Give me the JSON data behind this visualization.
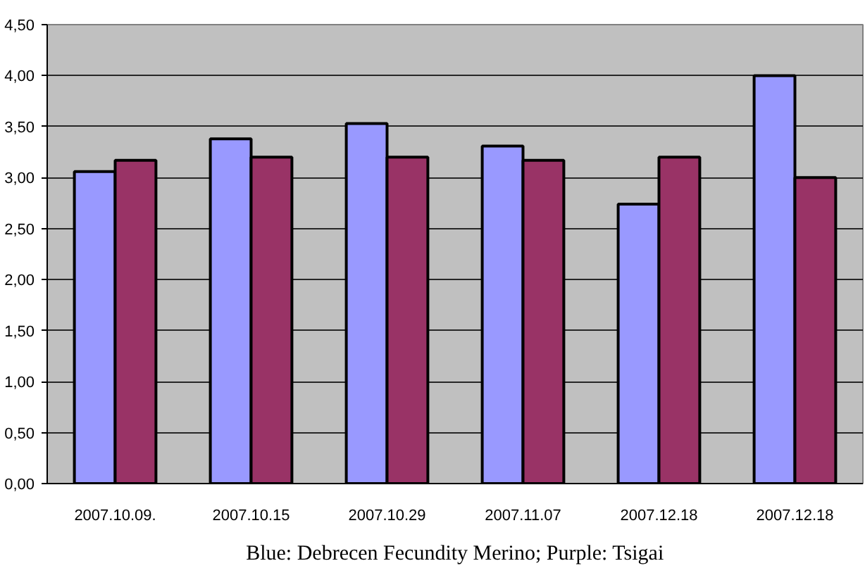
{
  "chart_data": {
    "type": "bar",
    "categories": [
      "2007.10.09.",
      "2007.10.15",
      "2007.10.29",
      "2007.11.07",
      "2007.12.18",
      "2007.12.18"
    ],
    "series": [
      {
        "color": "#9999ff",
        "values": [
          3.06,
          3.38,
          3.53,
          3.31,
          2.74,
          4.0
        ]
      },
      {
        "color": "#993366",
        "values": [
          3.17,
          3.2,
          3.2,
          3.17,
          3.2,
          3.0
        ]
      }
    ],
    "ylim": [
      0,
      4.5
    ],
    "yticks": [
      {
        "value": 0,
        "label": "0,00"
      },
      {
        "value": 0.5,
        "label": "0,50"
      },
      {
        "value": 1,
        "label": "1,00"
      },
      {
        "value": 1.5,
        "label": "1,50"
      },
      {
        "value": 2,
        "label": "2,00"
      },
      {
        "value": 2.5,
        "label": "2,50"
      },
      {
        "value": 3,
        "label": "3,00"
      },
      {
        "value": 3.5,
        "label": "3,50"
      },
      {
        "value": 4,
        "label": "4,00"
      },
      {
        "value": 4.5,
        "label": "4,50"
      }
    ],
    "grid": "y",
    "annotations": [
      "Blue: Debrecen Fecundity Merino; Purple: Tsigai"
    ]
  }
}
